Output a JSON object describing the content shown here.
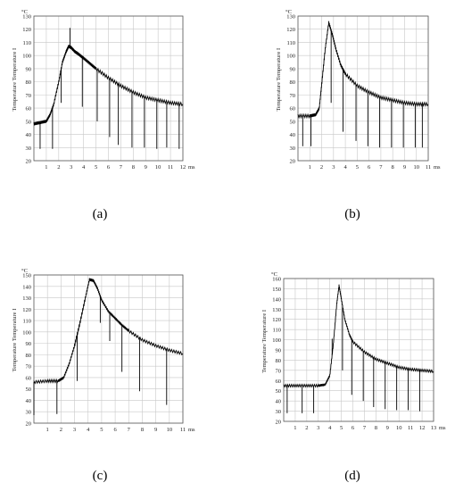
{
  "figure": {
    "captions": [
      "(a)",
      "(b)",
      "(c)",
      "(d)"
    ]
  },
  "chart_data": [
    {
      "type": "line",
      "panel": "a",
      "ylabel": "Temperature Temperature I",
      "y_unit": "°C",
      "x_unit": "ms",
      "xlim": [
        0,
        12
      ],
      "ylim": [
        20,
        130
      ],
      "x_ticks": [
        1,
        2,
        3,
        4,
        5,
        6,
        7,
        8,
        9,
        10,
        11,
        12
      ],
      "y_ticks": [
        20,
        30,
        40,
        50,
        60,
        70,
        80,
        90,
        100,
        110,
        120,
        130
      ],
      "grid": true,
      "series": [
        {
          "points": [
            [
              0,
              48
            ],
            [
              0.5,
              49
            ],
            [
              1,
              50
            ],
            [
              1.3,
              55
            ],
            [
              1.6,
              63
            ],
            [
              2,
              80
            ],
            [
              2.3,
              95
            ],
            [
              2.6,
              103
            ],
            [
              2.8,
              107
            ],
            [
              3,
              106
            ],
            [
              3.3,
              103
            ],
            [
              3.6,
              101
            ],
            [
              4,
              98
            ],
            [
              4.5,
              94
            ],
            [
              5,
              90
            ],
            [
              6,
              83
            ],
            [
              7,
              77
            ],
            [
              8,
              72
            ],
            [
              9,
              68
            ],
            [
              10,
              66
            ],
            [
              11,
              64
            ],
            [
              12,
              63
            ]
          ],
          "spikes_down": [
            [
              0.5,
              29
            ],
            [
              1.5,
              29
            ],
            [
              2.2,
              64
            ],
            [
              3.9,
              61
            ],
            [
              5.1,
              50
            ],
            [
              6.1,
              38
            ],
            [
              6.8,
              32
            ],
            [
              7.9,
              30
            ],
            [
              8.9,
              30
            ],
            [
              9.9,
              29
            ],
            [
              10.7,
              30
            ],
            [
              11.7,
              29
            ]
          ],
          "spikes_up": [
            [
              2.9,
              121
            ]
          ],
          "color": "#000000"
        }
      ]
    },
    {
      "type": "line",
      "panel": "b",
      "ylabel": "Temperature Temperature I",
      "y_unit": "°C",
      "x_unit": "ms",
      "xlim": [
        0,
        11
      ],
      "ylim": [
        20,
        130
      ],
      "x_ticks": [
        1,
        2,
        3,
        4,
        5,
        6,
        7,
        8,
        9,
        10,
        11
      ],
      "y_ticks": [
        20,
        30,
        40,
        50,
        60,
        70,
        80,
        90,
        100,
        110,
        120,
        130
      ],
      "grid": true,
      "series": [
        {
          "points": [
            [
              0,
              54
            ],
            [
              1,
              54
            ],
            [
              1.5,
              55
            ],
            [
              1.8,
              60
            ],
            [
              2,
              78
            ],
            [
              2.3,
              105
            ],
            [
              2.6,
              125
            ],
            [
              2.9,
              116
            ],
            [
              3.2,
              105
            ],
            [
              3.6,
              93
            ],
            [
              4,
              86
            ],
            [
              5,
              77
            ],
            [
              6,
              72
            ],
            [
              7,
              68
            ],
            [
              8,
              66
            ],
            [
              9,
              64
            ],
            [
              10,
              63
            ],
            [
              11,
              63
            ]
          ],
          "spikes_down": [
            [
              0.4,
              31
            ],
            [
              1.1,
              31
            ],
            [
              2.8,
              64
            ],
            [
              3.8,
              42
            ],
            [
              4.9,
              35
            ],
            [
              5.9,
              31
            ],
            [
              6.9,
              30
            ],
            [
              7.9,
              30
            ],
            [
              8.9,
              30
            ],
            [
              9.9,
              30
            ],
            [
              10.5,
              30
            ]
          ],
          "spikes_up": [],
          "color": "#000000"
        }
      ]
    },
    {
      "type": "line",
      "panel": "c",
      "ylabel": "Temperature Temperature I",
      "y_unit": "°C",
      "x_unit": "ms",
      "xlim": [
        0,
        11
      ],
      "ylim": [
        20,
        150
      ],
      "x_ticks": [
        1,
        2,
        3,
        4,
        5,
        6,
        7,
        8,
        9,
        10,
        11
      ],
      "y_ticks": [
        20,
        30,
        40,
        50,
        60,
        70,
        80,
        90,
        100,
        110,
        120,
        130,
        140,
        150
      ],
      "grid": true,
      "series": [
        {
          "points": [
            [
              0,
              56
            ],
            [
              1,
              57
            ],
            [
              1.8,
              57
            ],
            [
              2.2,
              60
            ],
            [
              2.6,
              72
            ],
            [
              3,
              88
            ],
            [
              3.4,
              108
            ],
            [
              3.8,
              130
            ],
            [
              4.1,
              146
            ],
            [
              4.4,
              145
            ],
            [
              4.7,
              138
            ],
            [
              5,
              128
            ],
            [
              5.5,
              118
            ],
            [
              6,
              112
            ],
            [
              6.5,
              106
            ],
            [
              7,
              101
            ],
            [
              8,
              93
            ],
            [
              9,
              88
            ],
            [
              10,
              84
            ],
            [
              11,
              81
            ]
          ],
          "spikes_down": [
            [
              0,
              27
            ],
            [
              1.7,
              28
            ],
            [
              3.2,
              57
            ],
            [
              4.9,
              108
            ],
            [
              5.6,
              92
            ],
            [
              6.5,
              65
            ],
            [
              7.8,
              48
            ],
            [
              9.8,
              36
            ]
          ],
          "spikes_up": [],
          "color": "#000000"
        }
      ]
    },
    {
      "type": "line",
      "panel": "d",
      "ylabel": "Temperature Temperature I",
      "y_unit": "°C",
      "x_unit": "ms",
      "xlim": [
        0,
        13
      ],
      "ylim": [
        20,
        160
      ],
      "x_ticks": [
        1,
        2,
        3,
        4,
        5,
        6,
        7,
        8,
        9,
        10,
        11,
        12,
        13
      ],
      "y_ticks": [
        20,
        30,
        40,
        50,
        60,
        70,
        80,
        90,
        100,
        110,
        120,
        130,
        140,
        150,
        160
      ],
      "grid": true,
      "series": [
        {
          "points": [
            [
              0,
              55
            ],
            [
              1,
              55
            ],
            [
              2,
              55
            ],
            [
              3,
              55
            ],
            [
              3.6,
              56
            ],
            [
              4,
              65
            ],
            [
              4.3,
              95
            ],
            [
              4.6,
              135
            ],
            [
              4.8,
              153
            ],
            [
              5,
              140
            ],
            [
              5.3,
              120
            ],
            [
              5.7,
              105
            ],
            [
              6,
              98
            ],
            [
              7,
              88
            ],
            [
              8,
              81
            ],
            [
              9,
              77
            ],
            [
              10,
              73
            ],
            [
              11,
              71
            ],
            [
              12,
              70
            ],
            [
              13,
              69
            ]
          ],
          "spikes_down": [
            [
              0.3,
              28
            ],
            [
              1.6,
              28
            ],
            [
              2.6,
              28
            ],
            [
              4.2,
              101
            ],
            [
              5.1,
              70
            ],
            [
              5.9,
              46
            ],
            [
              6.9,
              40
            ],
            [
              7.8,
              34
            ],
            [
              8.8,
              32
            ],
            [
              9.8,
              31
            ],
            [
              10.8,
              31
            ],
            [
              11.8,
              30
            ]
          ],
          "spikes_up": [],
          "color": "#000000"
        }
      ]
    }
  ]
}
